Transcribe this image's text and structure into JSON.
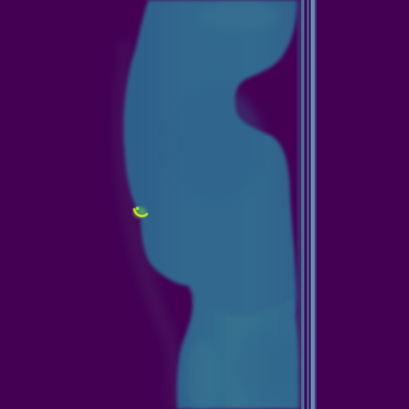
{
  "image": {
    "kind": "medical-scan-slice",
    "view": "sagittal",
    "colormap": "viridis",
    "colors": {
      "background": "#440154",
      "air_glow": "#48175f",
      "body": "#31668e",
      "body_dark": "#2d5d8a",
      "body_light": "#3a7a94",
      "table_rail": "#4a6f96",
      "table_rail_light": "#6a8cb0",
      "hotspot": "#d2e21b",
      "hotspot_edge": "#5ec962"
    }
  }
}
